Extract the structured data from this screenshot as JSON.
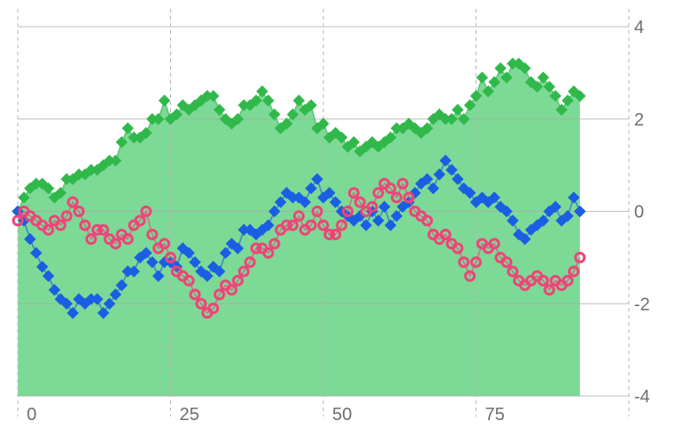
{
  "chart_data": {
    "type": "line",
    "title": "",
    "xlabel": "",
    "ylabel": "",
    "xlim": [
      0,
      100
    ],
    "ylim": [
      -4,
      4
    ],
    "x_ticks": [
      0,
      25,
      50,
      75,
      100
    ],
    "x_tick_labels": [
      "0",
      "25",
      "50",
      "75",
      ""
    ],
    "y_ticks": [
      -4,
      -2,
      0,
      2,
      4
    ],
    "y_tick_labels": [
      "-4",
      "-2",
      "0",
      "2",
      "4"
    ],
    "y_axis_side": "right",
    "legend": "none",
    "grid": {
      "x": "dashed",
      "y": "solid"
    },
    "series": [
      {
        "color": "#30b94a",
        "fill": "#7dd996",
        "area": true,
        "marker": "diamond",
        "values": [
          0.0,
          0.3,
          0.5,
          0.6,
          0.6,
          0.5,
          0.3,
          0.4,
          0.7,
          0.7,
          0.8,
          0.8,
          0.9,
          0.9,
          1.0,
          1.1,
          1.1,
          1.5,
          1.8,
          1.6,
          1.6,
          1.7,
          2.0,
          2.0,
          2.4,
          2.0,
          2.1,
          2.3,
          2.2,
          2.3,
          2.4,
          2.5,
          2.5,
          2.2,
          2.0,
          1.9,
          2.0,
          2.3,
          2.3,
          2.4,
          2.6,
          2.4,
          2.1,
          1.8,
          1.9,
          2.1,
          2.4,
          2.2,
          2.3,
          1.8,
          1.9,
          1.6,
          1.7,
          1.6,
          1.4,
          1.5,
          1.3,
          1.4,
          1.5,
          1.4,
          1.5,
          1.6,
          1.8,
          1.8,
          1.9,
          1.8,
          1.7,
          1.8,
          2.0,
          2.1,
          2.0,
          2.0,
          2.2,
          2.0,
          2.3,
          2.5,
          2.9,
          2.6,
          2.8,
          3.1,
          2.9,
          3.2,
          3.2,
          3.1,
          2.8,
          2.7,
          2.9,
          2.7,
          2.5,
          2.2,
          2.4,
          2.6,
          2.5
        ]
      },
      {
        "color": "#1a5fe3",
        "area": false,
        "marker": "diamond",
        "values": [
          0.0,
          -0.2,
          -0.6,
          -0.9,
          -1.2,
          -1.4,
          -1.7,
          -1.9,
          -2.0,
          -2.2,
          -1.9,
          -2.0,
          -1.9,
          -1.9,
          -2.2,
          -2.0,
          -1.8,
          -1.6,
          -1.3,
          -1.3,
          -1.0,
          -0.9,
          -1.1,
          -1.4,
          -1.1,
          -1.1,
          -1.2,
          -0.8,
          -0.9,
          -1.1,
          -1.3,
          -1.4,
          -1.2,
          -1.3,
          -0.9,
          -0.7,
          -0.8,
          -0.4,
          -0.4,
          -0.5,
          -0.4,
          -0.3,
          0.0,
          0.2,
          0.4,
          0.3,
          0.3,
          0.2,
          0.5,
          0.7,
          0.3,
          0.4,
          0.2,
          0.0,
          -0.1,
          -0.2,
          -0.1,
          -0.3,
          0.0,
          -0.2,
          0.1,
          -0.3,
          -0.1,
          0.1,
          0.2,
          0.4,
          0.6,
          0.7,
          0.5,
          0.8,
          1.1,
          0.9,
          0.7,
          0.5,
          0.4,
          0.2,
          0.3,
          0.2,
          0.3,
          0.1,
          0.0,
          -0.2,
          -0.5,
          -0.6,
          -0.4,
          -0.3,
          -0.2,
          0.0,
          0.1,
          -0.2,
          -0.1,
          0.3,
          0.0
        ]
      },
      {
        "color": "#ee4479",
        "area": false,
        "marker": "circle",
        "values": [
          -0.2,
          0.0,
          -0.1,
          -0.2,
          -0.3,
          -0.4,
          -0.2,
          -0.3,
          -0.1,
          0.2,
          0.0,
          -0.3,
          -0.6,
          -0.4,
          -0.4,
          -0.6,
          -0.7,
          -0.5,
          -0.6,
          -0.3,
          -0.2,
          0.0,
          -0.5,
          -0.8,
          -0.7,
          -1.0,
          -1.3,
          -1.4,
          -1.5,
          -1.8,
          -2.0,
          -2.2,
          -2.1,
          -1.8,
          -1.6,
          -1.7,
          -1.5,
          -1.3,
          -1.1,
          -0.8,
          -0.8,
          -0.9,
          -0.7,
          -0.4,
          -0.3,
          -0.3,
          -0.1,
          -0.4,
          -0.3,
          0.0,
          -0.3,
          -0.5,
          -0.5,
          -0.3,
          0.0,
          0.4,
          0.2,
          0.0,
          0.1,
          0.4,
          0.6,
          0.5,
          0.3,
          0.6,
          0.3,
          0.0,
          -0.1,
          -0.2,
          -0.5,
          -0.6,
          -0.5,
          -0.7,
          -0.8,
          -1.1,
          -1.4,
          -1.1,
          -0.7,
          -0.8,
          -0.7,
          -1.0,
          -1.1,
          -1.3,
          -1.5,
          -1.6,
          -1.5,
          -1.4,
          -1.5,
          -1.7,
          -1.5,
          -1.6,
          -1.5,
          -1.3,
          -1.0
        ]
      }
    ]
  }
}
